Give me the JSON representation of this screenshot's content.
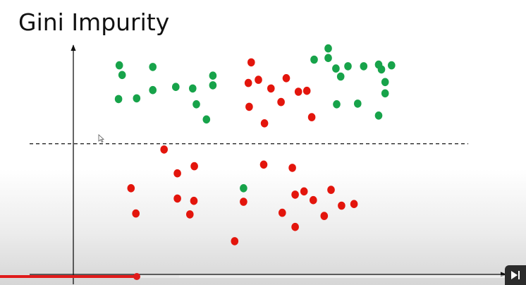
{
  "slide": {
    "title": "Gini Impurity"
  },
  "colors": {
    "class_a": "#17a34a",
    "class_b": "#e3150c",
    "axes": "#111111",
    "split_line": "#111111"
  },
  "video": {
    "progress": 0.26,
    "buffered": 0.34
  },
  "chart_data": {
    "type": "scatter",
    "title": "",
    "xlabel": "",
    "ylabel": "",
    "xlim": [
      0,
      100
    ],
    "ylim": [
      0,
      100
    ],
    "grid": false,
    "legend": "none",
    "split_line": {
      "orientation": "horizontal",
      "y": 57,
      "style": "dashed"
    },
    "series": [
      {
        "color": "#17a34a",
        "points": [
          [
            11.4,
            91.2
          ],
          [
            12.1,
            87.0
          ],
          [
            19.7,
            90.5
          ],
          [
            11.2,
            76.5
          ],
          [
            15.7,
            76.8
          ],
          [
            19.7,
            80.4
          ],
          [
            25.4,
            81.8
          ],
          [
            29.6,
            81.1
          ],
          [
            30.5,
            74.2
          ],
          [
            34.6,
            86.7
          ],
          [
            34.6,
            82.5
          ],
          [
            33.0,
            67.6
          ],
          [
            59.7,
            93.7
          ],
          [
            63.2,
            98.6
          ],
          [
            63.2,
            94.4
          ],
          [
            65.1,
            89.8
          ],
          [
            68.1,
            90.8
          ],
          [
            66.3,
            86.3
          ],
          [
            72.0,
            90.8
          ],
          [
            75.7,
            91.5
          ],
          [
            76.4,
            89.4
          ],
          [
            78.9,
            91.2
          ],
          [
            77.3,
            83.9
          ],
          [
            77.3,
            79.0
          ],
          [
            65.3,
            74.2
          ],
          [
            70.5,
            74.5
          ],
          [
            75.7,
            69.3
          ],
          [
            42.2,
            37.6
          ]
        ]
      },
      {
        "color": "#e3150c",
        "points": [
          [
            44.1,
            92.5
          ],
          [
            43.4,
            83.5
          ],
          [
            45.9,
            84.9
          ],
          [
            49.0,
            81.1
          ],
          [
            52.8,
            85.6
          ],
          [
            51.5,
            75.2
          ],
          [
            43.6,
            73.1
          ],
          [
            47.4,
            65.9
          ],
          [
            55.8,
            79.7
          ],
          [
            57.9,
            80.1
          ],
          [
            59.1,
            68.6
          ],
          [
            22.5,
            54.5
          ],
          [
            30.0,
            47.2
          ],
          [
            25.8,
            44.1
          ],
          [
            14.3,
            37.6
          ],
          [
            25.8,
            33.1
          ],
          [
            29.9,
            32.1
          ],
          [
            15.5,
            26.6
          ],
          [
            28.9,
            26.2
          ],
          [
            42.2,
            31.7
          ],
          [
            47.2,
            47.9
          ],
          [
            54.3,
            46.5
          ],
          [
            55.0,
            34.8
          ],
          [
            57.2,
            36.2
          ],
          [
            59.5,
            32.4
          ],
          [
            63.9,
            36.9
          ],
          [
            62.2,
            25.5
          ],
          [
            66.5,
            30.0
          ],
          [
            69.6,
            30.7
          ],
          [
            51.8,
            26.9
          ],
          [
            55.0,
            20.7
          ],
          [
            40.0,
            14.5
          ]
        ]
      }
    ]
  }
}
